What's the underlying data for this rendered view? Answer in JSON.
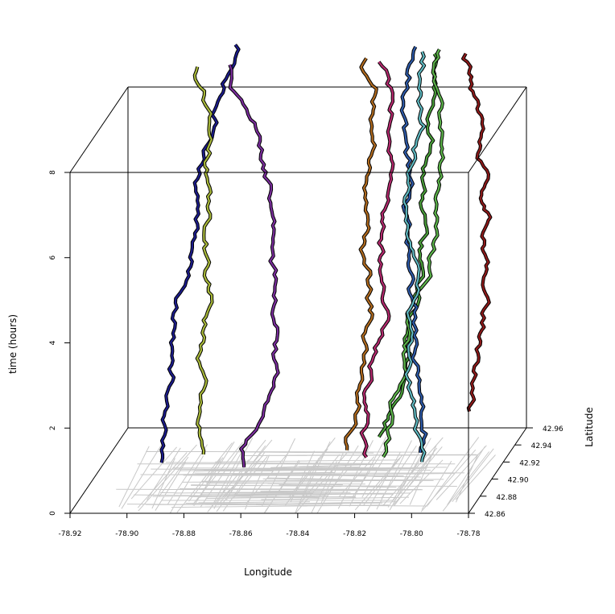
{
  "chart_data": {
    "type": "line",
    "subtype": "3d-space-time-trajectories",
    "title": "",
    "xlabel": "Longitude",
    "ylabel": "Latitude",
    "zlabel": "time (hours)",
    "xlim": [
      -78.92,
      -78.78
    ],
    "ylim": [
      42.86,
      42.96
    ],
    "zlim": [
      0,
      8
    ],
    "x_ticks": [
      "-78.92",
      "-78.90",
      "-78.88",
      "-78.86",
      "-78.84",
      "-78.82",
      "-78.80",
      "-78.78"
    ],
    "y_ticks": [
      "42.86",
      "42.88",
      "42.90",
      "42.92",
      "42.94",
      "42.96"
    ],
    "z_ticks": [
      "0",
      "2",
      "4",
      "6",
      "8"
    ],
    "basemap": "street network (light gray) on floor",
    "grid": false,
    "legend": "none",
    "series": [
      {
        "color": "#1c1c8c",
        "start": [
          -78.891,
          42.875
        ],
        "end": [
          -78.885,
          42.955
        ],
        "drift": -0.004
      },
      {
        "color": "#a8b83a",
        "start": [
          -78.878,
          42.885
        ],
        "end": [
          -78.888,
          42.93
        ],
        "drift": 0.004
      },
      {
        "color": "#7a2d9c",
        "start": [
          -78.86,
          42.87
        ],
        "end": [
          -78.876,
          42.93
        ],
        "drift": 0.012
      },
      {
        "color": "#b06a1e",
        "start": [
          -78.829,
          42.89
        ],
        "end": [
          -78.832,
          42.94
        ],
        "drift": 0.004
      },
      {
        "color": "#b42a6e",
        "start": [
          -78.819,
          42.88
        ],
        "end": [
          -78.827,
          42.935
        ],
        "drift": 0.003
      },
      {
        "color": "#4a9e3a",
        "start": [
          -78.82,
          42.905
        ],
        "end": [
          -78.81,
          42.945
        ],
        "drift": 0.006
      },
      {
        "color": "#5cb44a",
        "start": [
          -78.815,
          42.88
        ],
        "end": [
          -78.806,
          42.95
        ],
        "drift": 0.005
      },
      {
        "color": "#2e5aa8",
        "start": [
          -78.802,
          42.885
        ],
        "end": [
          -78.817,
          42.95
        ],
        "drift": -0.003
      },
      {
        "color": "#5fb8c0",
        "start": [
          -78.8,
          42.875
        ],
        "end": [
          -78.812,
          42.945
        ],
        "drift": -0.004
      },
      {
        "color": "#8e1a1a",
        "start": [
          -78.795,
          42.935
        ],
        "end": [
          -78.8,
          42.945
        ],
        "drift": 0.007
      }
    ]
  }
}
